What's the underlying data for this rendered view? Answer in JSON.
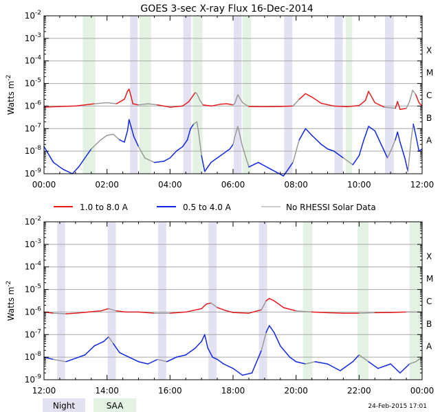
{
  "title": "GOES 3-sec X-ray Flux   16-Dec-2014",
  "timestamp": "24-Feb-2015 17:01",
  "colors": {
    "long": "#e8191c",
    "short": "#1026e6",
    "no_rhessi": "#999999",
    "night": "#e2e2f2",
    "saa": "#e4f2e4",
    "grid": "#a8a8a8"
  },
  "legend": {
    "long": "1.0 to 8.0 A",
    "short": "0.5 to 4.0 A",
    "no_rhessi": "No RHESSI Solar Data"
  },
  "key": {
    "night": "Night",
    "saa": "SAA"
  },
  "chart_data": [
    {
      "type": "line",
      "panel": "top",
      "ylabel": "Watts m",
      "ylabel_sup": "-2",
      "yscale": "log",
      "ylim": [
        1e-09,
        0.01
      ],
      "y_ticks": [
        {
          "v": -9,
          "base": "10",
          "exp": "-9"
        },
        {
          "v": -8,
          "base": "10",
          "exp": "-8"
        },
        {
          "v": -7,
          "base": "10",
          "exp": "-7"
        },
        {
          "v": -6,
          "base": "10",
          "exp": "-6"
        },
        {
          "v": -5,
          "base": "10",
          "exp": "-5"
        },
        {
          "v": -4,
          "base": "10",
          "exp": "-4"
        },
        {
          "v": -3,
          "base": "10",
          "exp": "-3"
        },
        {
          "v": -2,
          "base": "10",
          "exp": "-2"
        }
      ],
      "classes": [
        {
          "label": "A",
          "v": -8
        },
        {
          "label": "B",
          "v": -7
        },
        {
          "label": "C",
          "v": -6
        },
        {
          "label": "M",
          "v": -5
        },
        {
          "label": "X",
          "v": -4
        }
      ],
      "xlim": [
        0,
        12
      ],
      "x_ticks": [
        {
          "v": 0,
          "label": "00:00"
        },
        {
          "v": 2,
          "label": "02:00"
        },
        {
          "v": 4,
          "label": "04:00"
        },
        {
          "v": 6,
          "label": "06:00"
        },
        {
          "v": 8,
          "label": "08:00"
        },
        {
          "v": 10,
          "label": "10:00"
        },
        {
          "v": 12,
          "label": "12:00"
        }
      ],
      "night": [
        [
          2.73,
          2.97
        ],
        [
          4.42,
          4.67
        ],
        [
          6.02,
          6.27
        ],
        [
          7.62,
          7.88
        ],
        [
          9.22,
          9.48
        ],
        [
          10.82,
          11.1
        ]
      ],
      "saa": [
        [
          1.23,
          1.63
        ],
        [
          3.03,
          3.4
        ],
        [
          4.72,
          5.03
        ],
        [
          6.3,
          6.57
        ],
        [
          9.58,
          9.78
        ]
      ],
      "no_rhessi": [
        [
          1.63,
          2.35
        ],
        [
          3.05,
          3.62
        ],
        [
          4.72,
          5.03
        ],
        [
          6.02,
          6.57
        ],
        [
          7.83,
          8.0
        ],
        [
          9.58,
          9.78
        ],
        [
          10.82,
          11.15
        ],
        [
          11.55,
          11.75
        ]
      ],
      "series": [
        {
          "name": "1.0 to 8.0 A",
          "key": "long",
          "x": [
            0,
            0.5,
            1.0,
            1.3,
            1.6,
            2.0,
            2.3,
            2.55,
            2.65,
            2.7,
            2.76,
            2.82,
            3.0,
            3.3,
            3.6,
            4.0,
            4.4,
            4.6,
            4.8,
            4.85,
            4.95,
            5.05,
            5.3,
            5.6,
            5.8,
            6.0,
            6.05,
            6.15,
            6.3,
            6.5,
            7.0,
            7.5,
            7.9,
            8.1,
            8.3,
            8.5,
            8.8,
            9.2,
            9.6,
            10.0,
            10.2,
            10.3,
            10.5,
            10.8,
            11.0,
            11.15,
            11.22,
            11.3,
            11.5,
            11.6,
            11.7,
            11.8,
            11.9,
            12.0
          ],
          "y": [
            -6.05,
            -6.02,
            -6.0,
            -5.95,
            -5.9,
            -5.85,
            -5.9,
            -5.7,
            -5.35,
            -5.25,
            -5.55,
            -5.9,
            -5.95,
            -5.9,
            -5.95,
            -6.05,
            -6.0,
            -5.8,
            -5.4,
            -5.45,
            -5.75,
            -5.95,
            -6.0,
            -5.92,
            -5.9,
            -5.95,
            -5.9,
            -5.5,
            -5.85,
            -6.02,
            -6.03,
            -6.02,
            -6.0,
            -5.7,
            -5.45,
            -5.6,
            -5.88,
            -6.0,
            -6.03,
            -5.98,
            -5.75,
            -5.35,
            -5.85,
            -6.05,
            -6.08,
            -6.1,
            -5.8,
            -6.15,
            -6.1,
            -5.8,
            -5.3,
            -5.5,
            -5.85,
            -6.0
          ]
        },
        {
          "name": "0.5 to 4.0 A",
          "key": "short",
          "x": [
            0,
            0.3,
            0.6,
            0.9,
            1.1,
            1.3,
            1.5,
            1.8,
            2.0,
            2.2,
            2.4,
            2.55,
            2.65,
            2.7,
            2.76,
            2.85,
            3.0,
            3.2,
            3.5,
            3.8,
            4.0,
            4.2,
            4.4,
            4.55,
            4.65,
            4.75,
            4.85,
            4.9,
            5.0,
            5.1,
            5.3,
            5.5,
            5.7,
            5.9,
            6.0,
            6.05,
            6.15,
            6.3,
            6.5,
            6.8,
            7.2,
            7.6,
            7.9,
            8.1,
            8.3,
            8.5,
            8.8,
            9.0,
            9.2,
            9.5,
            9.8,
            10.0,
            10.15,
            10.3,
            10.5,
            10.7,
            10.9,
            11.0,
            11.15,
            11.22,
            11.3,
            11.45,
            11.55,
            11.65,
            11.72,
            11.8,
            11.9,
            12.0
          ],
          "y": [
            -7.8,
            -8.5,
            -8.8,
            -9.0,
            -8.7,
            -8.3,
            -7.9,
            -7.5,
            -7.3,
            -7.25,
            -7.5,
            -7.6,
            -7.1,
            -6.6,
            -6.9,
            -7.35,
            -7.8,
            -8.3,
            -8.5,
            -8.45,
            -8.3,
            -8.0,
            -7.8,
            -7.5,
            -7.0,
            -6.8,
            -6.7,
            -7.1,
            -8.2,
            -8.9,
            -8.5,
            -8.3,
            -8.1,
            -7.9,
            -7.7,
            -7.4,
            -6.9,
            -7.8,
            -8.7,
            -8.5,
            -8.8,
            -9.1,
            -8.5,
            -7.5,
            -7.0,
            -7.3,
            -7.7,
            -7.9,
            -8.0,
            -8.3,
            -8.6,
            -8.2,
            -7.5,
            -6.9,
            -7.1,
            -7.7,
            -8.3,
            -8.0,
            -7.5,
            -7.15,
            -7.6,
            -8.3,
            -8.9,
            -7.5,
            -6.8,
            -7.3,
            -8.0,
            -7.9
          ]
        }
      ]
    },
    {
      "type": "line",
      "panel": "bottom",
      "ylabel": "Watts m",
      "ylabel_sup": "-2",
      "yscale": "log",
      "ylim": [
        1e-09,
        0.01
      ],
      "y_ticks": [
        {
          "v": -9,
          "base": "10",
          "exp": "-9"
        },
        {
          "v": -8,
          "base": "10",
          "exp": "-8"
        },
        {
          "v": -7,
          "base": "10",
          "exp": "-7"
        },
        {
          "v": -6,
          "base": "10",
          "exp": "-6"
        },
        {
          "v": -5,
          "base": "10",
          "exp": "-5"
        },
        {
          "v": -4,
          "base": "10",
          "exp": "-4"
        },
        {
          "v": -3,
          "base": "10",
          "exp": "-3"
        },
        {
          "v": -2,
          "base": "10",
          "exp": "-2"
        }
      ],
      "classes": [
        {
          "label": "A",
          "v": -8
        },
        {
          "label": "B",
          "v": -7
        },
        {
          "label": "C",
          "v": -6
        },
        {
          "label": "M",
          "v": -5
        },
        {
          "label": "X",
          "v": -4
        }
      ],
      "xlim": [
        12,
        24
      ],
      "x_ticks": [
        {
          "v": 12,
          "label": "12:00"
        },
        {
          "v": 14,
          "label": "14:00"
        },
        {
          "v": 16,
          "label": "16:00"
        },
        {
          "v": 18,
          "label": "18:00"
        },
        {
          "v": 20,
          "label": "20:00"
        },
        {
          "v": 22,
          "label": "22:00"
        },
        {
          "v": 24,
          "label": "00:00"
        }
      ],
      "night": [
        [
          12.42,
          12.67
        ],
        [
          14.02,
          14.28
        ],
        [
          15.62,
          15.88
        ],
        [
          17.22,
          17.48
        ],
        [
          18.82,
          19.08
        ]
      ],
      "saa": [
        [
          20.22,
          20.52
        ],
        [
          21.95,
          22.3
        ],
        [
          23.6,
          24.0
        ]
      ],
      "no_rhessi": [
        [
          12.2,
          12.62
        ],
        [
          14.05,
          14.22
        ],
        [
          15.68,
          15.85
        ],
        [
          17.28,
          17.42
        ],
        [
          18.88,
          19.02
        ],
        [
          20.25,
          20.55
        ],
        [
          21.98,
          22.25
        ],
        [
          23.62,
          24.0
        ]
      ],
      "series": [
        {
          "name": "1.0 to 8.0 A",
          "key": "long",
          "x": [
            12.0,
            12.3,
            12.7,
            13.0,
            13.4,
            13.8,
            14.05,
            14.3,
            14.6,
            15.0,
            15.5,
            16.0,
            16.5,
            17.0,
            17.15,
            17.3,
            17.5,
            17.8,
            18.0,
            18.5,
            18.9,
            19.05,
            19.15,
            19.3,
            19.6,
            20.0,
            20.5,
            21.0,
            21.5,
            22.0,
            22.5,
            23.0,
            23.5,
            24.0
          ],
          "y": [
            -6.0,
            -6.05,
            -6.08,
            -6.05,
            -6.0,
            -5.95,
            -5.85,
            -5.95,
            -6.0,
            -6.0,
            -6.05,
            -6.05,
            -6.0,
            -5.85,
            -5.65,
            -5.6,
            -5.8,
            -5.95,
            -6.02,
            -6.05,
            -5.9,
            -5.5,
            -5.4,
            -5.5,
            -5.8,
            -5.95,
            -6.0,
            -6.03,
            -6.05,
            -6.05,
            -6.03,
            -6.02,
            -6.0,
            -6.0
          ]
        },
        {
          "name": "0.5 to 4.0 A",
          "key": "short",
          "x": [
            12.0,
            12.3,
            12.7,
            13.0,
            13.3,
            13.6,
            13.9,
            14.05,
            14.2,
            14.4,
            14.7,
            15.0,
            15.3,
            15.6,
            15.9,
            16.2,
            16.5,
            16.8,
            17.0,
            17.1,
            17.2,
            17.35,
            17.5,
            17.7,
            18.0,
            18.3,
            18.6,
            18.9,
            19.05,
            19.15,
            19.3,
            19.5,
            19.8,
            20.0,
            20.3,
            20.6,
            21.0,
            21.4,
            21.8,
            22.0,
            22.3,
            22.6,
            23.0,
            23.3,
            23.6,
            23.8,
            24.0
          ],
          "y": [
            -8.0,
            -8.1,
            -8.2,
            -8.05,
            -7.9,
            -7.5,
            -7.3,
            -7.1,
            -7.4,
            -7.8,
            -8.0,
            -8.2,
            -8.3,
            -8.1,
            -8.2,
            -8.0,
            -7.9,
            -7.6,
            -7.3,
            -7.0,
            -7.6,
            -8.0,
            -8.1,
            -8.3,
            -8.5,
            -8.8,
            -8.7,
            -7.7,
            -6.9,
            -6.6,
            -6.9,
            -7.5,
            -8.0,
            -8.2,
            -8.3,
            -8.2,
            -8.3,
            -8.6,
            -8.2,
            -7.9,
            -8.2,
            -8.5,
            -8.3,
            -8.7,
            -8.3,
            -8.2,
            -8.0
          ]
        }
      ]
    }
  ]
}
